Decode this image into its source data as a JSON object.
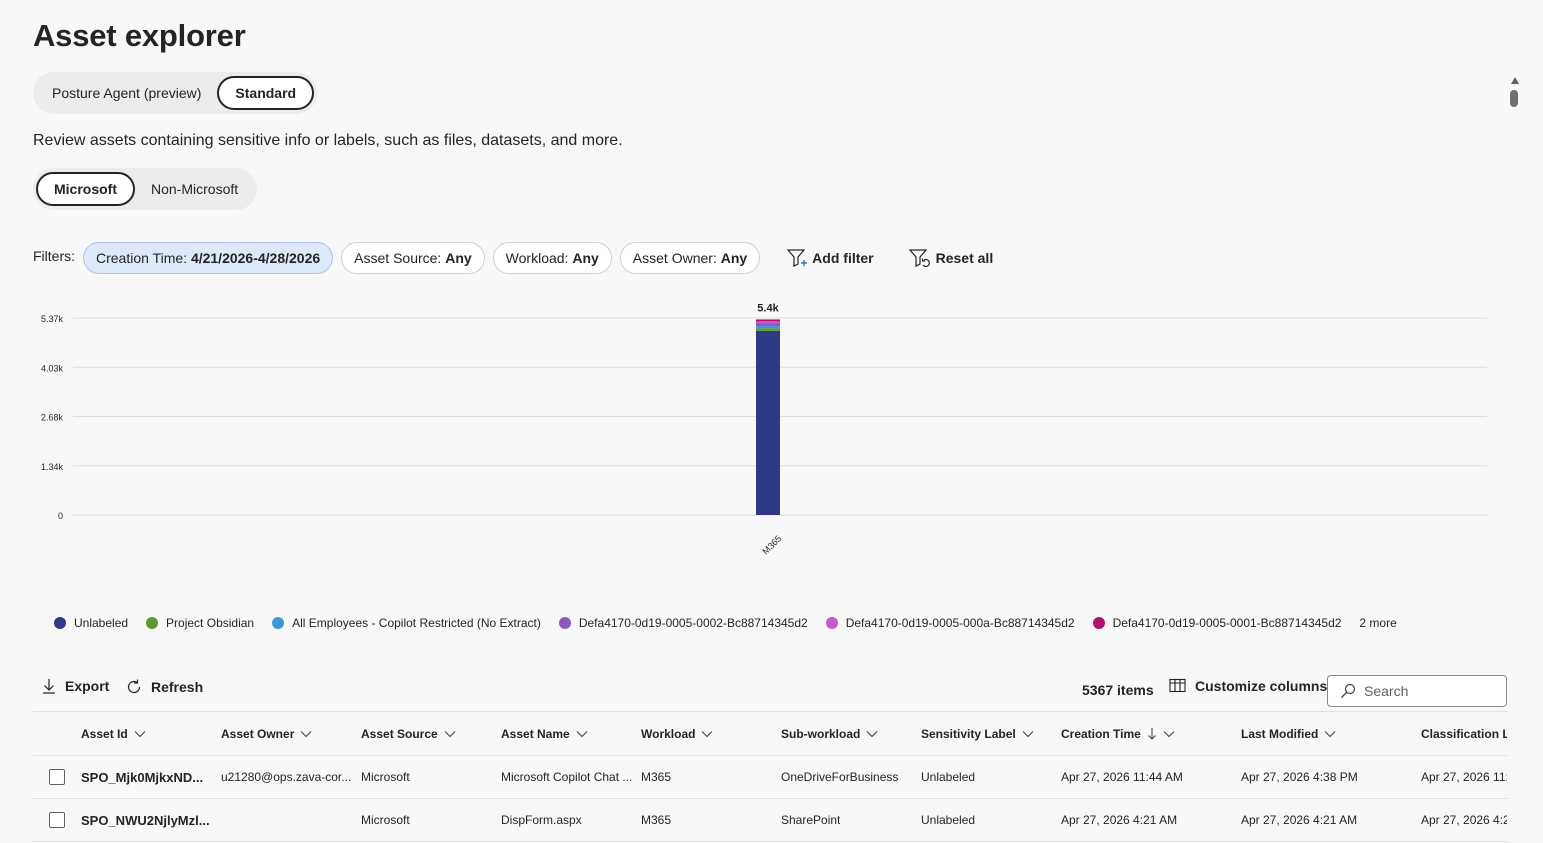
{
  "page_title": "Asset explorer",
  "mode_toggle": {
    "options": [
      "Posture Agent (preview)",
      "Standard"
    ],
    "selected": "Standard"
  },
  "description": "Review assets containing sensitive info or labels, such as files, datasets, and more.",
  "source_toggle": {
    "options": [
      "Microsoft",
      "Non-Microsoft"
    ],
    "selected": "Microsoft"
  },
  "filters": {
    "label": "Filters:",
    "creation_time": {
      "name": "Creation Time: ",
      "value": "4/21/2026-4/28/2026"
    },
    "asset_source": {
      "name": "Asset Source: ",
      "value": "Any"
    },
    "workload": {
      "name": "Workload: ",
      "value": "Any"
    },
    "asset_owner": {
      "name": "Asset Owner: ",
      "value": "Any"
    },
    "add_filter": "Add filter",
    "reset_all": "Reset all"
  },
  "chart_data": {
    "type": "bar",
    "stacked": true,
    "categories": [
      "M365"
    ],
    "total_labels": [
      "5.4k"
    ],
    "y_ticks": [
      "0",
      "1.34k",
      "2.68k",
      "4.03k",
      "5.37k"
    ],
    "ylim": [
      0,
      5370
    ],
    "grid": true,
    "series": [
      {
        "name": "Unlabeled",
        "color": "#2e3a87",
        "values": [
          5020
        ]
      },
      {
        "name": "Project Obsidian",
        "color": "#5c9c2e",
        "values": [
          70
        ]
      },
      {
        "name": "All Employees - Copilot Restricted (No Extract)",
        "color": "#3a9ad9",
        "values": [
          60
        ]
      },
      {
        "name": "Defa4170-0d19-0005-0002-Bc88714345d2",
        "color": "#8a5bbf",
        "values": [
          70
        ]
      },
      {
        "name": "Defa4170-0d19-0005-000a-Bc88714345d2",
        "color": "#c65bcf",
        "values": [
          60
        ]
      },
      {
        "name": "Defa4170-0d19-0005-0001-Bc88714345d2",
        "color": "#b0126e",
        "values": [
          50
        ]
      }
    ],
    "legend_more": "2 more"
  },
  "toolbar": {
    "export": "Export",
    "refresh": "Refresh",
    "items_count": "5367 items",
    "customize_columns": "Customize columns",
    "search_placeholder": "Search"
  },
  "table": {
    "columns": [
      "Asset Id",
      "Asset Owner",
      "Asset Source",
      "Asset Name",
      "Workload",
      "Sub-workload",
      "Sensitivity Label",
      "Creation Time",
      "Last Modified",
      "Classification La"
    ],
    "rows": [
      [
        "SPO_Mjk0MjkxND...",
        "u21280@ops.zava-cor...",
        "Microsoft",
        "Microsoft Copilot Chat ...",
        "M365",
        "OneDriveForBusiness",
        "Unlabeled",
        "Apr 27, 2026 11:44 AM",
        "Apr 27, 2026 4:38 PM",
        "Apr 27, 2026 11:"
      ],
      [
        "SPO_NWU2NjlyMzl...",
        "",
        "Microsoft",
        "DispForm.aspx",
        "M365",
        "SharePoint",
        "Unlabeled",
        "Apr 27, 2026 4:21 AM",
        "Apr 27, 2026 4:21 AM",
        "Apr 27, 2026 4:2"
      ]
    ]
  }
}
